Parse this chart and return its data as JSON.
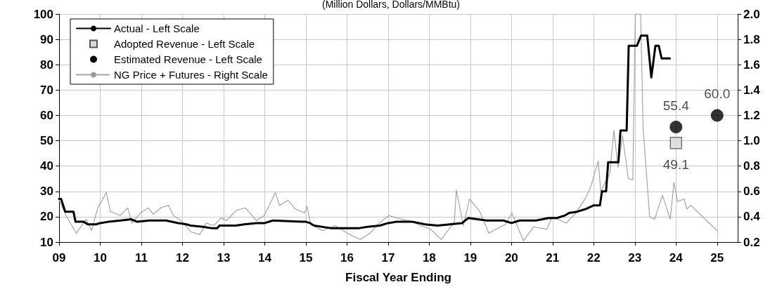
{
  "chart_data": {
    "type": "line",
    "subtitle": "(Million Dollars, Dollars/MMBtu)",
    "xlabel": "Fiscal Year Ending",
    "xlim": [
      9,
      25.5
    ],
    "xticks": [
      {
        "value": 9,
        "label": "09"
      },
      10,
      11,
      12,
      13,
      14,
      15,
      16,
      17,
      18,
      19,
      20,
      21,
      22,
      23,
      24,
      25
    ],
    "ylim": [
      10,
      100
    ],
    "yticks": [
      10,
      20,
      30,
      40,
      50,
      60,
      70,
      80,
      90,
      100
    ],
    "y2lim": [
      0.2,
      2.0
    ],
    "y2ticks": [
      {
        "value": 0.2,
        "label": "0.2"
      },
      {
        "value": 0.4,
        "label": "0.4"
      },
      {
        "value": 0.6,
        "label": "0.6"
      },
      {
        "value": 0.8,
        "label": "0.8"
      },
      {
        "value": 1.0,
        "label": "1.0"
      },
      {
        "value": 1.2,
        "label": "1.2"
      },
      {
        "value": 1.4,
        "label": "1.4"
      },
      {
        "value": 1.6,
        "label": "1.6"
      },
      {
        "value": 1.8,
        "label": "1.8"
      },
      {
        "value": 2.0,
        "label": "2.0"
      }
    ],
    "grid": true,
    "legend": "top left",
    "series": [
      {
        "name": "Actual - Left Scale",
        "color": "#000000",
        "marker": "none",
        "line_style": "solid",
        "x": [
          9.0,
          9.05,
          9.15,
          9.35,
          9.4,
          9.6,
          9.7,
          9.9,
          10.0,
          10.2,
          10.5,
          10.75,
          10.9,
          11.2,
          11.6,
          11.9,
          12.1,
          12.2,
          12.5,
          12.7,
          12.85,
          12.9,
          13.3,
          13.5,
          13.8,
          14.0,
          14.2,
          14.9,
          15.0,
          15.1,
          15.2,
          15.6,
          16.0,
          16.3,
          16.5,
          16.8,
          17.0,
          17.2,
          17.6,
          17.9,
          18.2,
          18.5,
          18.8,
          18.95,
          19.4,
          19.8,
          20.0,
          20.2,
          20.6,
          20.9,
          21.1,
          21.3,
          21.4,
          21.6,
          21.8,
          22.0,
          22.15,
          22.2,
          22.3,
          22.35,
          22.6,
          22.65,
          22.8,
          22.85,
          23.05,
          23.15,
          23.3,
          23.4,
          23.5,
          23.58,
          23.65,
          23.85
        ],
        "values": [
          27,
          27,
          22,
          22,
          18,
          18,
          17,
          17,
          17.5,
          18,
          18.5,
          19,
          18,
          18.5,
          18.5,
          17.5,
          17,
          16.5,
          16,
          15.5,
          15.5,
          16.5,
          16.5,
          17,
          17.5,
          17.5,
          18.5,
          18,
          18,
          17.5,
          16.5,
          15.5,
          15.5,
          15.5,
          16,
          16.5,
          17.5,
          18,
          18,
          17,
          16.5,
          17,
          17.5,
          19.5,
          18.5,
          18.5,
          17.5,
          18.5,
          18.5,
          19.5,
          19.5,
          20.5,
          21.5,
          22,
          23,
          24.5,
          24.5,
          30,
          30,
          41.5,
          41.5,
          54,
          54,
          87.5,
          87.5,
          91.5,
          91.5,
          75,
          87.5,
          87.5,
          82.5,
          82.5
        ]
      },
      {
        "name": "Adopted Revenue - Left Scale",
        "type": "scatter",
        "color": "#d9d9d9",
        "marker": "square",
        "x": [
          24
        ],
        "values": [
          49.1
        ],
        "value_labels": [
          "49.1"
        ]
      },
      {
        "name": "Estimated Revenue - Left Scale",
        "type": "scatter",
        "color": "#000000",
        "marker": "circle",
        "x": [
          24,
          25
        ],
        "values": [
          55.4,
          60.0
        ],
        "value_labels": [
          "55.4",
          "60.0"
        ]
      },
      {
        "name": "NG Price + Futures - Right Scale",
        "axis": "y2",
        "color": "#999999",
        "marker": "none",
        "line_style": "dotted",
        "x": [
          9.0,
          9.2,
          9.42,
          9.66,
          9.79,
          9.94,
          10.15,
          10.25,
          10.49,
          10.67,
          10.77,
          10.98,
          11.17,
          11.29,
          11.47,
          11.66,
          11.78,
          11.96,
          12.21,
          12.42,
          12.58,
          12.76,
          12.94,
          13.07,
          13.31,
          13.53,
          13.8,
          13.99,
          14.26,
          14.36,
          14.57,
          14.75,
          14.97,
          15.03,
          15.12,
          15.4,
          15.71,
          16.01,
          16.32,
          16.56,
          16.75,
          17.02,
          17.11,
          17.48,
          18.04,
          18.29,
          18.61,
          18.66,
          18.83,
          18.98,
          19.23,
          19.45,
          19.67,
          19.86,
          20.01,
          20.29,
          20.54,
          20.86,
          20.99,
          21.33,
          21.54,
          21.79,
          21.92,
          22.11,
          22.17,
          22.39,
          22.49,
          22.59,
          22.7,
          22.84,
          22.95,
          23.01,
          23.14,
          23.2,
          23.36,
          23.48,
          23.67,
          23.86,
          23.95,
          24.04,
          24.2,
          24.26,
          24.36,
          25.0
        ],
        "values": [
          0.53,
          0.39,
          0.27,
          0.38,
          0.29,
          0.47,
          0.59,
          0.44,
          0.41,
          0.47,
          0.35,
          0.43,
          0.47,
          0.42,
          0.47,
          0.49,
          0.41,
          0.37,
          0.28,
          0.26,
          0.35,
          0.33,
          0.39,
          0.37,
          0.45,
          0.47,
          0.37,
          0.41,
          0.59,
          0.49,
          0.53,
          0.46,
          0.43,
          0.48,
          0.34,
          0.29,
          0.33,
          0.27,
          0.22,
          0.27,
          0.34,
          0.41,
          0.4,
          0.37,
          0.3,
          0.22,
          0.36,
          0.61,
          0.33,
          0.54,
          0.44,
          0.27,
          0.31,
          0.34,
          0.43,
          0.21,
          0.32,
          0.3,
          0.4,
          0.35,
          0.42,
          0.54,
          0.63,
          0.84,
          0.6,
          0.74,
          1.08,
          0.79,
          1.04,
          0.7,
          0.69,
          2.0,
          2.0,
          1.1,
          0.4,
          0.38,
          0.57,
          0.38,
          0.67,
          0.52,
          0.54,
          0.46,
          0.49,
          0.29
        ]
      }
    ]
  }
}
